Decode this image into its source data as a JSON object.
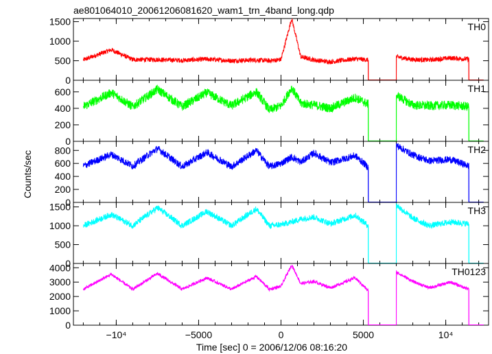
{
  "chart_data": {
    "type": "line",
    "title": "ae801064010_20061206081620_wam1_trn_4band_long.qdp",
    "xlabel": "Time [sec] 0 = 2006/12/06 08:16:20",
    "ylabel": "Counts/sec",
    "xlim": [
      -12600,
      12600
    ],
    "x_ticks": [
      {
        "value": -10000,
        "label": "−10⁴"
      },
      {
        "value": -5000,
        "label": "−5000"
      },
      {
        "value": 0,
        "label": "0"
      },
      {
        "value": 5000,
        "label": "5000"
      },
      {
        "value": 10000,
        "label": "10⁴"
      }
    ],
    "gap": {
      "start": 5300,
      "end": 7000
    },
    "end_drop": 11400,
    "panels": [
      {
        "name": "TH0",
        "color": "#ff0000",
        "ylim": [
          0,
          1580
        ],
        "yticks": [
          0,
          500,
          1000,
          1500
        ],
        "base": 520,
        "amplitude": 280,
        "noise": 60,
        "gap_level": 5,
        "flare_peak": 1580,
        "flare_dip": 420,
        "points": [
          [
            -12000,
            520
          ],
          [
            -10300,
            780
          ],
          [
            -9000,
            530
          ],
          [
            -7500,
            530
          ],
          [
            -6000,
            510
          ],
          [
            -4500,
            540
          ],
          [
            -3000,
            500
          ],
          [
            -1500,
            520
          ],
          [
            -700,
            500
          ],
          [
            0,
            530
          ],
          [
            650,
            1580
          ],
          [
            1200,
            600
          ],
          [
            2000,
            520
          ],
          [
            3000,
            470
          ],
          [
            4500,
            550
          ],
          [
            5300,
            520
          ],
          [
            5301,
            5
          ],
          [
            6999,
            5
          ],
          [
            7000,
            600
          ],
          [
            8000,
            530
          ],
          [
            9000,
            520
          ],
          [
            10300,
            570
          ],
          [
            11400,
            540
          ],
          [
            11401,
            5
          ],
          [
            12300,
            5
          ]
        ]
      },
      {
        "name": "TH1",
        "color": "#00ff00",
        "ylim": [
          0,
          740
        ],
        "yticks": [
          0,
          200,
          400,
          600
        ],
        "base": 420,
        "amplitude": 220,
        "noise": 55,
        "gap_level": 5,
        "flare_peak": 650,
        "flare_dip": 320,
        "points": [
          [
            -12000,
            420
          ],
          [
            -10300,
            590
          ],
          [
            -9000,
            420
          ],
          [
            -7500,
            630
          ],
          [
            -6000,
            420
          ],
          [
            -4500,
            590
          ],
          [
            -3000,
            430
          ],
          [
            -1500,
            600
          ],
          [
            -700,
            380
          ],
          [
            0,
            430
          ],
          [
            650,
            650
          ],
          [
            1200,
            460
          ],
          [
            2000,
            440
          ],
          [
            3000,
            400
          ],
          [
            4500,
            530
          ],
          [
            5300,
            450
          ],
          [
            5301,
            5
          ],
          [
            6999,
            5
          ],
          [
            7000,
            560
          ],
          [
            8000,
            440
          ],
          [
            9000,
            430
          ],
          [
            10300,
            440
          ],
          [
            11400,
            420
          ],
          [
            11401,
            5
          ],
          [
            12300,
            5
          ]
        ]
      },
      {
        "name": "TH2",
        "color": "#0000ff",
        "ylim": [
          0,
          940
        ],
        "yticks": [
          0,
          200,
          400,
          600,
          800
        ],
        "base": 560,
        "amplitude": 220,
        "noise": 55,
        "gap_level": 5,
        "flare_peak": 780,
        "flare_dip": 480,
        "points": [
          [
            -12000,
            560
          ],
          [
            -10300,
            740
          ],
          [
            -9000,
            560
          ],
          [
            -7500,
            830
          ],
          [
            -6000,
            550
          ],
          [
            -4500,
            770
          ],
          [
            -3000,
            550
          ],
          [
            -1500,
            800
          ],
          [
            -700,
            550
          ],
          [
            0,
            600
          ],
          [
            650,
            700
          ],
          [
            1200,
            620
          ],
          [
            2000,
            760
          ],
          [
            3000,
            610
          ],
          [
            4500,
            720
          ],
          [
            5300,
            540
          ],
          [
            5301,
            5
          ],
          [
            6999,
            5
          ],
          [
            7000,
            880
          ],
          [
            8000,
            730
          ],
          [
            9000,
            640
          ],
          [
            10300,
            660
          ],
          [
            11400,
            560
          ],
          [
            11401,
            5
          ],
          [
            12300,
            5
          ]
        ]
      },
      {
        "name": "TH3",
        "color": "#00ffff",
        "ylim": [
          0,
          1620
        ],
        "yticks": [
          0,
          500,
          1000,
          1500
        ],
        "base": 1000,
        "amplitude": 500,
        "noise": 80,
        "gap_level": 5,
        "flare_peak": 1150,
        "flare_dip": 850,
        "points": [
          [
            -12000,
            1000
          ],
          [
            -10300,
            1300
          ],
          [
            -9000,
            1000
          ],
          [
            -7500,
            1480
          ],
          [
            -6000,
            1000
          ],
          [
            -4500,
            1380
          ],
          [
            -3000,
            1000
          ],
          [
            -1500,
            1450
          ],
          [
            -700,
            1000
          ],
          [
            0,
            1030
          ],
          [
            650,
            1100
          ],
          [
            1200,
            1180
          ],
          [
            2000,
            1230
          ],
          [
            3000,
            1050
          ],
          [
            4500,
            1280
          ],
          [
            5300,
            1000
          ],
          [
            5301,
            5
          ],
          [
            6999,
            5
          ],
          [
            7000,
            1550
          ],
          [
            8000,
            1200
          ],
          [
            9000,
            1000
          ],
          [
            10300,
            1100
          ],
          [
            11400,
            1050
          ],
          [
            11401,
            5
          ],
          [
            12300,
            5
          ]
        ]
      },
      {
        "name": "TH0123",
        "color": "#ff00ff",
        "ylim": [
          0,
          4300
        ],
        "yticks": [
          0,
          1000,
          2000,
          3000,
          4000
        ],
        "base": 2500,
        "amplitude": 1100,
        "noise": 110,
        "gap_level": 5,
        "flare_peak": 4200,
        "flare_dip": 2200,
        "points": [
          [
            -12000,
            2500
          ],
          [
            -10300,
            3550
          ],
          [
            -9000,
            2500
          ],
          [
            -7500,
            3600
          ],
          [
            -6000,
            2500
          ],
          [
            -4500,
            3300
          ],
          [
            -3000,
            2500
          ],
          [
            -1500,
            3400
          ],
          [
            -700,
            2500
          ],
          [
            0,
            2700
          ],
          [
            650,
            4200
          ],
          [
            1200,
            2900
          ],
          [
            2000,
            3050
          ],
          [
            3000,
            2600
          ],
          [
            4500,
            3300
          ],
          [
            5300,
            2400
          ],
          [
            5301,
            5
          ],
          [
            6999,
            5
          ],
          [
            7000,
            3700
          ],
          [
            8000,
            3050
          ],
          [
            9000,
            2600
          ],
          [
            10300,
            3000
          ],
          [
            11400,
            2500
          ],
          [
            11401,
            5
          ],
          [
            12300,
            5
          ]
        ]
      }
    ]
  }
}
